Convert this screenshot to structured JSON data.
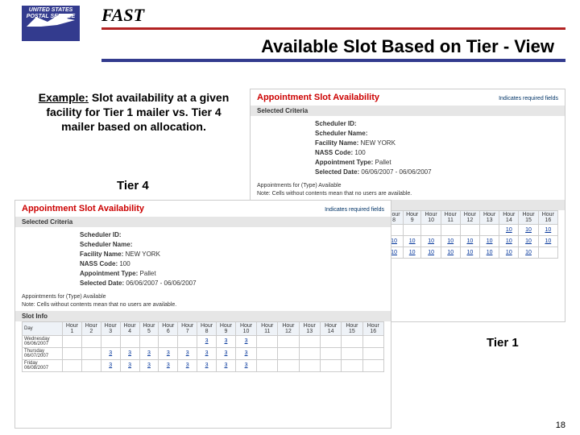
{
  "header": {
    "brand": "FAST",
    "subtitle": "Available Slot Based on Tier - View",
    "logo_text_line1": "UNITED STATES",
    "logo_text_line2": "POSTAL SERVICE",
    "rule_color_top": "#b22222",
    "rule_color_bottom": "#333b8e"
  },
  "example": {
    "prefix": "Example:",
    "body": "Slot availability at a given facility for Tier 1 mailer vs. Tier 4 mailer based on allocation."
  },
  "labels": {
    "tier4": "Tier  4",
    "tier1": "Tier 1"
  },
  "page_number": "18",
  "panels": {
    "title": "Appointment Slot Availability",
    "rhint": "Indicates required fields",
    "selected_criteria": "Selected Criteria",
    "fields": [
      {
        "k": "Scheduler ID:",
        "v": ""
      },
      {
        "k": "Scheduler Name:",
        "v": ""
      },
      {
        "k": "Facility Name:",
        "v": "NEW YORK"
      },
      {
        "k": "NASS Code:",
        "v": "100"
      },
      {
        "k": "Appointment Type:",
        "v": "Pallet"
      },
      {
        "k": "Selected Date:",
        "v": "06/06/2007 - 06/06/2007"
      }
    ],
    "note1": "Appointments for (Type) Available",
    "note2": "Note: Cells without contents mean that no users are available.",
    "section_word": "Slot Info",
    "day_header": "Day",
    "hours": [
      "Hour 1",
      "Hour 2",
      "Hour 3",
      "Hour 4",
      "Hour 5",
      "Hour 6",
      "Hour 7",
      "Hour 8",
      "Hour 9",
      "Hour 10",
      "Hour 11",
      "Hour 12",
      "Hour 13",
      "Hour 14",
      "Hour 15",
      "Hour 16"
    ],
    "tier1": {
      "rows": [
        {
          "day": "",
          "cells": [
            "",
            "",
            "",
            "",
            "",
            "",
            "",
            "",
            "",
            "",
            "",
            "",
            "",
            "10",
            "10",
            "10"
          ]
        },
        {
          "day": "",
          "cells": [
            "",
            "",
            "",
            "",
            "",
            "",
            "",
            "10",
            "10",
            "10",
            "10",
            "10",
            "10",
            "10",
            "10",
            "10"
          ]
        },
        {
          "day": "",
          "cells": [
            "",
            "",
            "",
            "",
            "",
            "",
            "",
            "10",
            "10",
            "10",
            "10",
            "10",
            "10",
            "10",
            "10",
            ""
          ]
        }
      ]
    },
    "tier4": {
      "rows": [
        {
          "day": "Wednesday 06/06/2007",
          "cells": [
            "",
            "",
            "",
            "",
            "",
            "",
            "",
            "3",
            "3",
            "3",
            "",
            "",
            "",
            "",
            "",
            ""
          ]
        },
        {
          "day": "Thursday 06/07/2007",
          "cells": [
            "",
            "",
            "3",
            "3",
            "3",
            "3",
            "3",
            "3",
            "3",
            "3",
            "",
            "",
            "",
            "",
            "",
            ""
          ]
        },
        {
          "day": "Friday 06/08/2007",
          "cells": [
            "",
            "",
            "3",
            "3",
            "3",
            "3",
            "3",
            "3",
            "3",
            "3",
            "",
            "",
            "",
            "",
            "",
            ""
          ]
        }
      ]
    }
  }
}
